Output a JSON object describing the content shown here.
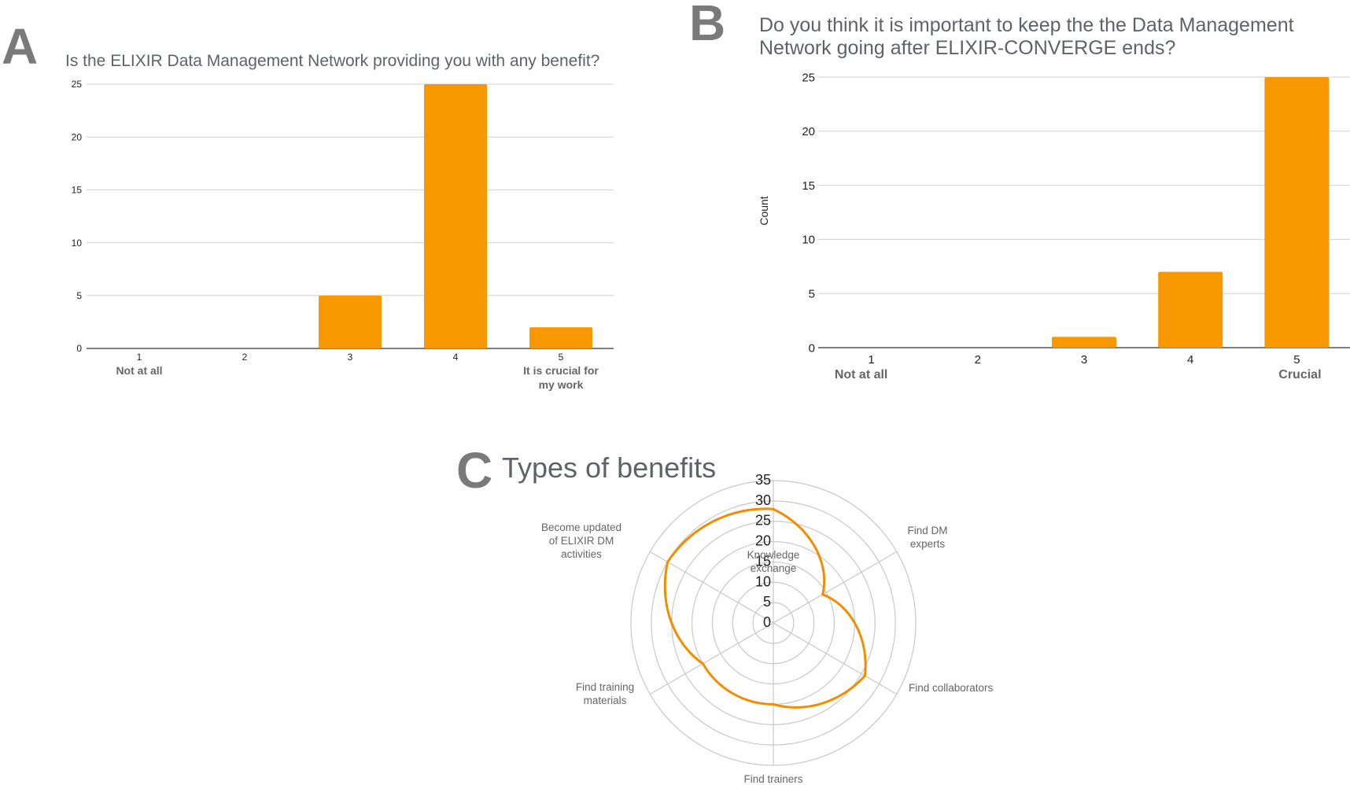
{
  "panels": {
    "a": {
      "letter": "A",
      "title": "Is the ELIXIR Data Management Network providing you with any benefit?"
    },
    "b": {
      "letter": "B",
      "title_lines": [
        "Do you think it is important to keep the the Data Management",
        "Network going after ELIXIR-CONVERGE ends?"
      ]
    },
    "c": {
      "letter": "C",
      "title": "Types of benefits"
    }
  },
  "colors": {
    "bar": "#f79800",
    "series": "#f28c00",
    "grid": "#d0d0d0",
    "title": "#5f6368",
    "letter": "#7a7a7a"
  },
  "chart_data": [
    {
      "type": "bar",
      "title": "Is the ELIXIR Data Management Network providing you with any benefit?",
      "categories": [
        "1",
        "2",
        "3",
        "4",
        "5"
      ],
      "category_sublabels": [
        [
          "Not at all"
        ],
        [],
        [],
        [],
        [
          "It is crucial for",
          "my work"
        ]
      ],
      "values": [
        0,
        0,
        5,
        25,
        2
      ],
      "ylabel": "",
      "ylim": [
        0,
        25
      ],
      "yticks": [
        0,
        5,
        10,
        15,
        20,
        25
      ],
      "grid": true
    },
    {
      "type": "bar",
      "title": "Do you think it is important to keep the the Data Management Network going after ELIXIR-CONVERGE ends?",
      "categories": [
        "1",
        "2",
        "3",
        "4",
        "5"
      ],
      "category_sublabels": [
        [
          "Not at all"
        ],
        [],
        [],
        [],
        [
          "Crucial"
        ]
      ],
      "values": [
        0,
        0,
        1,
        7,
        25
      ],
      "ylabel": "Count",
      "ylim": [
        0,
        25
      ],
      "yticks": [
        0,
        5,
        10,
        15,
        20,
        25
      ],
      "grid": true
    },
    {
      "type": "radar",
      "title": "Types of benefits",
      "axes": [
        [
          "Knowledge",
          "exchange"
        ],
        [
          "Find DM",
          "experts"
        ],
        [
          "Find collaborators"
        ],
        [
          "Find trainers"
        ],
        [
          "Find training",
          "materials"
        ],
        [
          "Become updated",
          "of ELIXIR DM",
          "activities"
        ]
      ],
      "values": [
        28,
        14,
        26,
        20,
        20,
        30
      ],
      "rlim": [
        0,
        35
      ],
      "rticks": [
        0,
        5,
        10,
        15,
        20,
        25,
        30,
        35
      ]
    }
  ]
}
